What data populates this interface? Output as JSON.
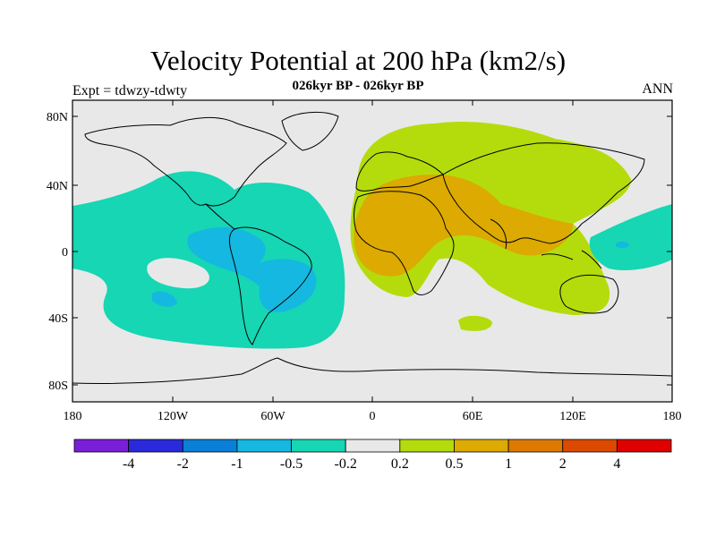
{
  "title": "Velocity Potential at 200 hPa (km2/s)",
  "subtitle": "026kyr BP - 026kyr BP",
  "left_string": "Expt = tdwzy-tdwty",
  "right_string": "ANN",
  "map": {
    "projection": "cylindrical-equidistant",
    "lon_range": [
      -180,
      180
    ],
    "lat_range": [
      -90,
      90
    ],
    "lat_ticks": [
      "80N",
      "40N",
      "0",
      "40S",
      "80S"
    ],
    "lon_ticks": [
      "180",
      "120W",
      "60W",
      "0",
      "60E",
      "120E",
      "180"
    ],
    "background_color": "#e8e8e8",
    "coastline_color": "#000000"
  },
  "colorbar": {
    "colors": [
      "#7a1fd8",
      "#2a2adc",
      "#0a7fd8",
      "#14b8e0",
      "#16d6b4",
      "#e8e8e8",
      "#b4dc0c",
      "#dcaa00",
      "#dc7a00",
      "#dc4a00",
      "#e00000"
    ],
    "labels": [
      "-4",
      "-2",
      "-1",
      "-0.5",
      "-0.2",
      "0.2",
      "0.5",
      "1",
      "2",
      "4"
    ]
  },
  "regions": [
    {
      "name": "pacific-americas-negative",
      "level": "-0.5 to -0.2",
      "color": "#16d6b4"
    },
    {
      "name": "americas-core-negative",
      "level": "-1 to -0.5",
      "color": "#14b8e0"
    },
    {
      "name": "eurasia-africa-positive",
      "level": "0.2 to 0.5",
      "color": "#b4dc0c"
    },
    {
      "name": "africa-arabia-core-positive",
      "level": "0.5 to 1",
      "color": "#dcaa00"
    },
    {
      "name": "west-pacific-negative",
      "level": "-0.5 to -0.2",
      "color": "#16d6b4"
    }
  ]
}
